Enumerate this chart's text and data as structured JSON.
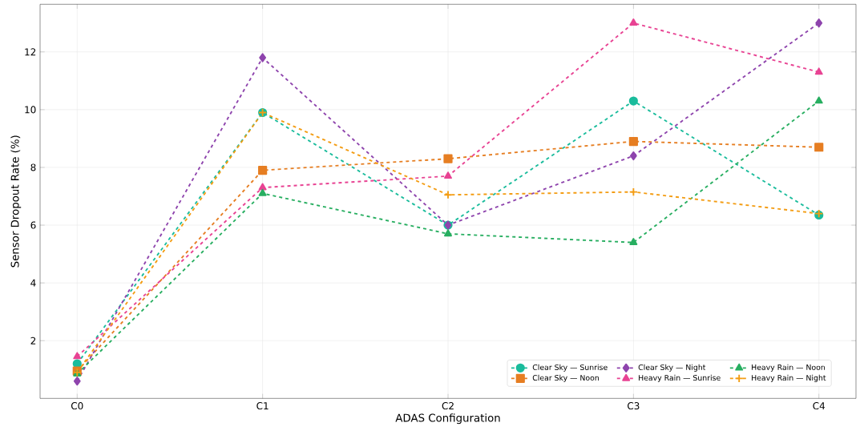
{
  "chart_data": {
    "type": "line",
    "xlabel": "ADAS Configuration",
    "ylabel": "Sensor Dropout Rate (%)",
    "categories": [
      "C0",
      "C1",
      "C2",
      "C3",
      "C4"
    ],
    "series": [
      {
        "name": "Clear Sky — Sunrise",
        "color": "#1abc9c",
        "marker": "circle",
        "values": [
          1.2,
          9.9,
          6.0,
          10.3,
          6.35
        ]
      },
      {
        "name": "Clear Sky — Noon",
        "color": "#e67e22",
        "marker": "square",
        "values": [
          0.95,
          7.9,
          8.3,
          8.9,
          8.7
        ]
      },
      {
        "name": "Clear Sky — Night",
        "color": "#8e44ad",
        "marker": "diamond",
        "values": [
          0.6,
          11.8,
          6.0,
          8.4,
          13.0
        ]
      },
      {
        "name": "Heavy Rain — Sunrise",
        "color": "#e84393",
        "marker": "triangle",
        "values": [
          1.45,
          7.3,
          7.7,
          13.0,
          11.3
        ]
      },
      {
        "name": "Heavy Rain — Noon",
        "color": "#27ae60",
        "marker": "triangle",
        "values": [
          0.85,
          7.1,
          5.7,
          5.4,
          10.3
        ]
      },
      {
        "name": "Heavy Rain — Night",
        "color": "#f39c12",
        "marker": "cross",
        "values": [
          0.9,
          9.9,
          7.05,
          7.15,
          6.4
        ]
      }
    ],
    "ylim": [
      0,
      13.65
    ],
    "yticks": [
      2,
      4,
      6,
      8,
      10,
      12
    ],
    "grid": true,
    "legend": "bottom right",
    "line_style": "dashed"
  }
}
